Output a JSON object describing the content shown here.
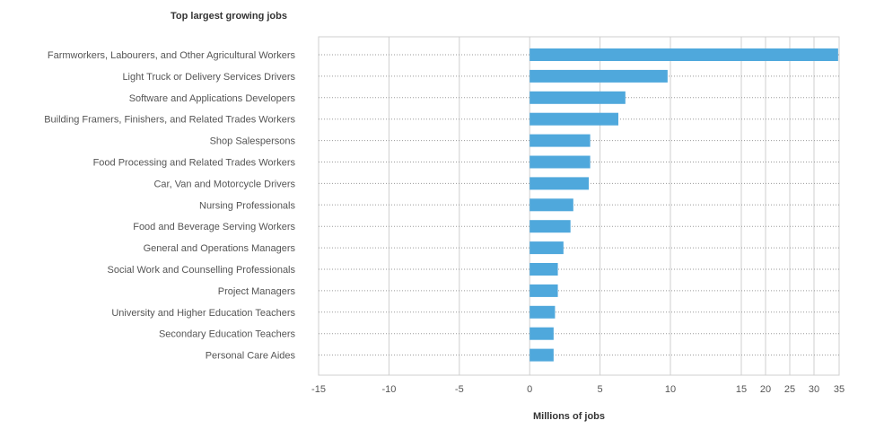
{
  "chart_data": {
    "type": "bar",
    "orientation": "horizontal",
    "title": "Top largest growing jobs",
    "xlabel": "Millions of jobs",
    "ylabel": "",
    "categories": [
      "Farmworkers, Labourers, and Other Agricultural Workers",
      "Light Truck or Delivery Services Drivers",
      "Software and Applications Developers",
      "Building Framers, Finishers, and Related Trades Workers",
      "Shop Salespersons",
      "Food Processing and Related Trades Workers",
      "Car, Van and Motorcycle Drivers",
      "Nursing Professionals",
      "Food and Beverage Serving Workers",
      "General and Operations Managers",
      "Social Work and Counselling Professionals",
      "Project Managers",
      "University and Higher Education Teachers",
      "Secondary Education Teachers",
      "Personal Care Aides"
    ],
    "values": [
      34.8,
      9.8,
      6.8,
      6.3,
      4.3,
      4.3,
      4.2,
      3.1,
      2.9,
      2.4,
      2.0,
      2.0,
      1.8,
      1.7,
      1.7
    ],
    "ticks": [
      -15,
      -10,
      -5,
      0,
      5,
      10,
      15,
      20,
      25,
      30,
      35
    ],
    "tick_labels": [
      "-15",
      "-10",
      "-5",
      "0",
      "5",
      "10",
      "15",
      "20",
      "25",
      "30",
      "35"
    ],
    "xlim": [
      -15,
      35
    ],
    "grid": true,
    "bar_color": "#4fa8dc"
  }
}
